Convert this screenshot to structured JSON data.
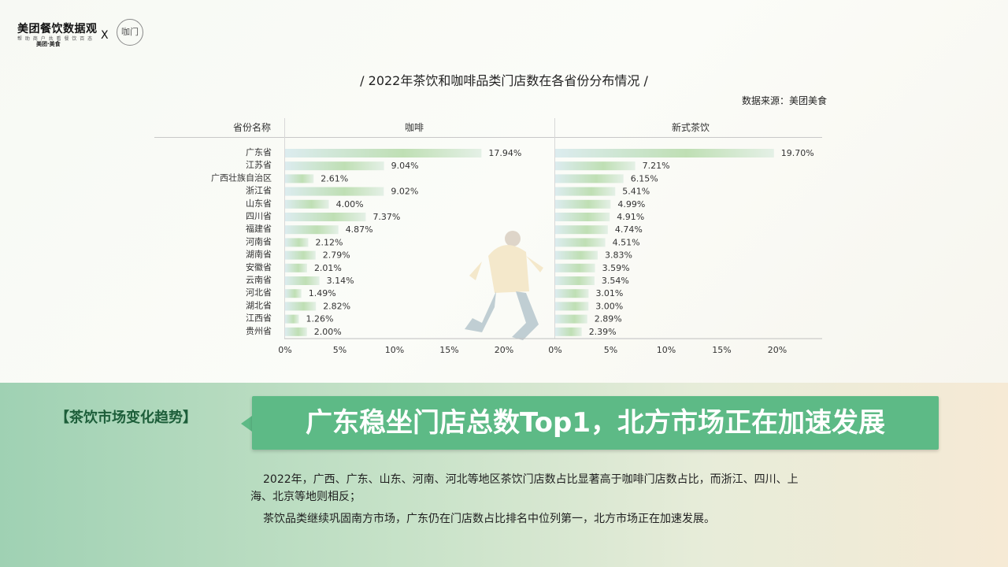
{
  "logo": {
    "title": "美团餐饮数据观",
    "subtitle": "帮 助 商 户 共 看 餐 饮 百 态",
    "meituan": "美团·美食",
    "cross": "X",
    "partner": "咖门"
  },
  "chart_title": "/ 2022年茶饮和咖啡品类门店数在各省份分布情况 /",
  "source": "数据来源：美团美食",
  "headers": {
    "province": "省份名称",
    "coffee": "咖啡",
    "tea": "新式茶饮"
  },
  "chart_data": [
    {
      "type": "bar",
      "title": "咖啡",
      "orientation": "horizontal",
      "categories": [
        "广东省",
        "江苏省",
        "广西壮族自治区",
        "浙江省",
        "山东省",
        "四川省",
        "福建省",
        "河南省",
        "湖南省",
        "安徽省",
        "云南省",
        "河北省",
        "湖北省",
        "江西省",
        "贵州省"
      ],
      "values": [
        17.94,
        9.04,
        2.61,
        9.02,
        4.0,
        7.37,
        4.87,
        2.12,
        2.79,
        2.01,
        3.14,
        1.49,
        2.82,
        1.26,
        2.0
      ],
      "labels": [
        "17.94%",
        "9.04%",
        "2.61%",
        "9.02%",
        "4.00%",
        "7.37%",
        "4.87%",
        "2.12%",
        "2.79%",
        "2.01%",
        "3.14%",
        "1.49%",
        "2.82%",
        "1.26%",
        "2.00%"
      ],
      "xlim": [
        0,
        25
      ],
      "xticks": [
        "0%",
        "5%",
        "10%",
        "15%",
        "20%"
      ]
    },
    {
      "type": "bar",
      "title": "新式茶饮",
      "orientation": "horizontal",
      "values": [
        19.7,
        7.21,
        6.15,
        5.41,
        4.99,
        4.91,
        4.74,
        4.51,
        3.83,
        3.59,
        3.54,
        3.01,
        3.0,
        2.89,
        2.39
      ],
      "labels": [
        "19.70%",
        "7.21%",
        "6.15%",
        "5.41%",
        "4.99%",
        "4.91%",
        "4.74%",
        "4.51%",
        "3.83%",
        "3.59%",
        "3.54%",
        "3.01%",
        "3.00%",
        "2.89%",
        "2.39%"
      ],
      "xlim": [
        0,
        24
      ],
      "xticks": [
        "0%",
        "5%",
        "10%",
        "15%",
        "20%"
      ]
    }
  ],
  "colors": {
    "bar_start": "#d9ebe9",
    "bar_mid": "#a9d39a",
    "accent": "#5dba86"
  },
  "section_tag": "【茶饮市场变化趋势】",
  "headline": "广东稳坐门店总数Top1，北方市场正在加速发展",
  "paragraphs": [
    "2022年，广西、广东、山东、河南、河北等地区茶饮门店数占比显著高于咖啡门店数占比，而浙江、四川、上海、北京等地则相反；",
    "茶饮品类继续巩固南方市场，广东仍在门店数占比排名中位列第一，北方市场正在加速发展。"
  ]
}
